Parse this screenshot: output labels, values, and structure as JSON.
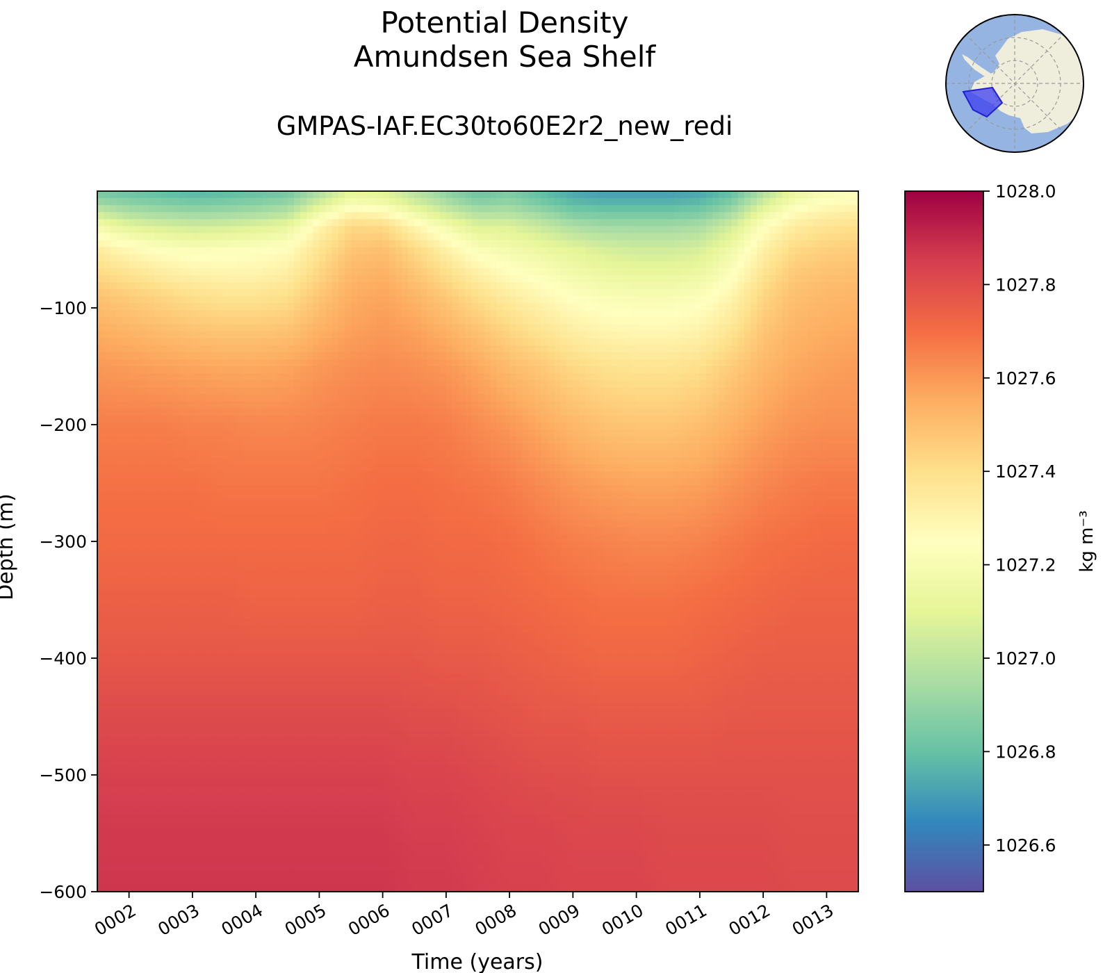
{
  "title": "Potential Density",
  "subtitle": "Amundsen Sea Shelf",
  "run_name": "GMPAS-IAF.EC30to60E2r2_new_redi",
  "chart_data": {
    "type": "heatmap",
    "title": "Potential Density\nAmundsen Sea Shelf",
    "subtitle": "GMPAS-IAF.EC30to60E2r2_new_redi",
    "xlabel": "Time (years)",
    "ylabel": "Depth (m)",
    "x_ticks": [
      "0002",
      "0003",
      "0004",
      "0005",
      "0006",
      "0007",
      "0008",
      "0009",
      "0010",
      "0011",
      "0012",
      "0013"
    ],
    "y_ticks": [
      -100,
      -200,
      -300,
      -400,
      -500,
      -600
    ],
    "y_tick_labels": [
      "−100",
      "−200",
      "−300",
      "−400",
      "−500",
      "−600"
    ],
    "xlim": [
      1.5,
      13.5
    ],
    "ylim": [
      -600,
      0
    ],
    "colorbar": {
      "label": "kg m⁻³",
      "range": [
        1026.5,
        1028.0
      ],
      "ticks": [
        1026.6,
        1026.8,
        1027.0,
        1027.2,
        1027.4,
        1027.6,
        1027.8,
        1028.0
      ],
      "tick_labels": [
        "1026.6",
        "1026.8",
        "1027.0",
        "1027.2",
        "1027.4",
        "1027.6",
        "1027.8",
        "1028.0"
      ],
      "colormap": "Spectral_r",
      "colors": [
        "#5e4fa2",
        "#3288bd",
        "#66c2a5",
        "#abdda4",
        "#e6f598",
        "#ffffbf",
        "#fee08b",
        "#fdae61",
        "#f46d43",
        "#d53e4f",
        "#9e0142"
      ]
    },
    "time": [
      1.5,
      2.0,
      2.5,
      3.0,
      3.5,
      4.0,
      4.5,
      5.0,
      5.5,
      6.0,
      6.5,
      7.0,
      7.5,
      8.0,
      8.5,
      9.0,
      9.5,
      10.0,
      10.5,
      11.0,
      11.5,
      12.0,
      12.5,
      13.0,
      13.5
    ],
    "depth": [
      0,
      -10,
      -20,
      -30,
      -50,
      -70,
      -90,
      -120,
      -150,
      -200,
      -250,
      -300,
      -350,
      -400,
      -450,
      -500,
      -550,
      -600
    ],
    "values": [
      [
        1026.82,
        1026.8,
        1026.78,
        1026.76,
        1026.77,
        1026.79,
        1026.82,
        1026.94,
        1027.1,
        1027.08,
        1026.98,
        1026.88,
        1026.8,
        1026.84,
        1026.78,
        1026.72,
        1026.7,
        1026.7,
        1026.7,
        1026.72,
        1026.78,
        1026.95,
        1027.12,
        1027.2,
        1027.22
      ],
      [
        1026.92,
        1026.88,
        1026.86,
        1026.84,
        1026.85,
        1026.87,
        1026.9,
        1027.05,
        1027.2,
        1027.17,
        1027.06,
        1026.96,
        1026.88,
        1026.9,
        1026.84,
        1026.78,
        1026.76,
        1026.76,
        1026.76,
        1026.78,
        1026.86,
        1027.05,
        1027.2,
        1027.26,
        1027.28
      ],
      [
        1027.05,
        1026.98,
        1026.95,
        1026.93,
        1026.94,
        1026.96,
        1027.0,
        1027.18,
        1027.32,
        1027.3,
        1027.18,
        1027.06,
        1026.98,
        1026.98,
        1026.93,
        1026.86,
        1026.84,
        1026.84,
        1026.84,
        1026.86,
        1026.95,
        1027.15,
        1027.28,
        1027.32,
        1027.34
      ],
      [
        1027.18,
        1027.1,
        1027.06,
        1027.04,
        1027.05,
        1027.08,
        1027.12,
        1027.3,
        1027.42,
        1027.42,
        1027.3,
        1027.18,
        1027.08,
        1027.08,
        1027.02,
        1026.96,
        1026.93,
        1026.93,
        1026.93,
        1026.95,
        1027.05,
        1027.24,
        1027.34,
        1027.38,
        1027.4
      ],
      [
        1027.34,
        1027.28,
        1027.24,
        1027.22,
        1027.23,
        1027.24,
        1027.26,
        1027.38,
        1027.48,
        1027.5,
        1027.42,
        1027.32,
        1027.22,
        1027.18,
        1027.14,
        1027.1,
        1027.06,
        1027.04,
        1027.04,
        1027.06,
        1027.16,
        1027.32,
        1027.42,
        1027.45,
        1027.46
      ],
      [
        1027.42,
        1027.38,
        1027.34,
        1027.31,
        1027.3,
        1027.3,
        1027.33,
        1027.43,
        1027.52,
        1027.54,
        1027.48,
        1027.4,
        1027.32,
        1027.26,
        1027.22,
        1027.17,
        1027.14,
        1027.12,
        1027.12,
        1027.14,
        1027.23,
        1027.38,
        1027.47,
        1027.49,
        1027.5
      ],
      [
        1027.49,
        1027.46,
        1027.43,
        1027.4,
        1027.38,
        1027.38,
        1027.4,
        1027.48,
        1027.55,
        1027.57,
        1027.53,
        1027.47,
        1027.4,
        1027.34,
        1027.29,
        1027.24,
        1027.21,
        1027.2,
        1027.2,
        1027.22,
        1027.3,
        1027.43,
        1027.5,
        1027.52,
        1027.53
      ],
      [
        1027.55,
        1027.53,
        1027.51,
        1027.49,
        1027.48,
        1027.48,
        1027.49,
        1027.54,
        1027.58,
        1027.6,
        1027.58,
        1027.54,
        1027.49,
        1027.43,
        1027.38,
        1027.33,
        1027.3,
        1027.29,
        1027.29,
        1027.31,
        1027.38,
        1027.48,
        1027.53,
        1027.55,
        1027.56
      ],
      [
        1027.6,
        1027.59,
        1027.58,
        1027.57,
        1027.56,
        1027.56,
        1027.57,
        1027.6,
        1027.62,
        1027.63,
        1027.62,
        1027.6,
        1027.56,
        1027.51,
        1027.47,
        1027.42,
        1027.39,
        1027.38,
        1027.38,
        1027.4,
        1027.46,
        1027.52,
        1027.56,
        1027.58,
        1027.59
      ],
      [
        1027.66,
        1027.66,
        1027.66,
        1027.65,
        1027.65,
        1027.64,
        1027.64,
        1027.65,
        1027.66,
        1027.67,
        1027.67,
        1027.66,
        1027.63,
        1027.6,
        1027.56,
        1027.52,
        1027.49,
        1027.48,
        1027.48,
        1027.5,
        1027.54,
        1027.58,
        1027.61,
        1027.62,
        1027.62
      ],
      [
        1027.69,
        1027.69,
        1027.69,
        1027.69,
        1027.68,
        1027.68,
        1027.68,
        1027.68,
        1027.69,
        1027.7,
        1027.7,
        1027.69,
        1027.68,
        1027.66,
        1027.63,
        1027.6,
        1027.58,
        1027.57,
        1027.57,
        1027.58,
        1027.61,
        1027.64,
        1027.66,
        1027.67,
        1027.67
      ],
      [
        1027.71,
        1027.71,
        1027.71,
        1027.71,
        1027.71,
        1027.71,
        1027.71,
        1027.71,
        1027.71,
        1027.72,
        1027.72,
        1027.71,
        1027.71,
        1027.7,
        1027.68,
        1027.66,
        1027.65,
        1027.64,
        1027.64,
        1027.65,
        1027.67,
        1027.69,
        1027.7,
        1027.71,
        1027.71
      ],
      [
        1027.74,
        1027.74,
        1027.74,
        1027.74,
        1027.74,
        1027.73,
        1027.73,
        1027.73,
        1027.73,
        1027.74,
        1027.74,
        1027.73,
        1027.73,
        1027.72,
        1027.71,
        1027.7,
        1027.69,
        1027.69,
        1027.69,
        1027.7,
        1027.71,
        1027.72,
        1027.73,
        1027.73,
        1027.73
      ],
      [
        1027.77,
        1027.77,
        1027.77,
        1027.77,
        1027.77,
        1027.77,
        1027.77,
        1027.77,
        1027.77,
        1027.77,
        1027.77,
        1027.76,
        1027.76,
        1027.75,
        1027.74,
        1027.73,
        1027.72,
        1027.72,
        1027.72,
        1027.73,
        1027.74,
        1027.75,
        1027.75,
        1027.75,
        1027.75
      ],
      [
        1027.81,
        1027.81,
        1027.81,
        1027.81,
        1027.81,
        1027.81,
        1027.81,
        1027.81,
        1027.81,
        1027.81,
        1027.8,
        1027.8,
        1027.79,
        1027.78,
        1027.77,
        1027.77,
        1027.76,
        1027.76,
        1027.76,
        1027.76,
        1027.77,
        1027.77,
        1027.77,
        1027.77,
        1027.77
      ],
      [
        1027.84,
        1027.84,
        1027.84,
        1027.84,
        1027.84,
        1027.84,
        1027.84,
        1027.84,
        1027.84,
        1027.84,
        1027.83,
        1027.83,
        1027.82,
        1027.81,
        1027.8,
        1027.8,
        1027.79,
        1027.79,
        1027.79,
        1027.79,
        1027.79,
        1027.79,
        1027.79,
        1027.79,
        1027.79
      ],
      [
        1027.86,
        1027.86,
        1027.86,
        1027.86,
        1027.86,
        1027.86,
        1027.86,
        1027.86,
        1027.86,
        1027.86,
        1027.85,
        1027.85,
        1027.84,
        1027.83,
        1027.83,
        1027.82,
        1027.82,
        1027.82,
        1027.81,
        1027.81,
        1027.81,
        1027.81,
        1027.8,
        1027.8,
        1027.8
      ],
      [
        1027.87,
        1027.87,
        1027.87,
        1027.87,
        1027.87,
        1027.87,
        1027.87,
        1027.87,
        1027.87,
        1027.87,
        1027.86,
        1027.86,
        1027.85,
        1027.84,
        1027.84,
        1027.83,
        1027.83,
        1027.83,
        1027.82,
        1027.82,
        1027.82,
        1027.82,
        1027.81,
        1027.81,
        1027.81
      ]
    ]
  },
  "inset_map": {
    "region": "Amundsen Sea Shelf",
    "ocean_color": "#95b4e2",
    "land_color": "#efeedd",
    "region_color": "#3d3df0"
  }
}
